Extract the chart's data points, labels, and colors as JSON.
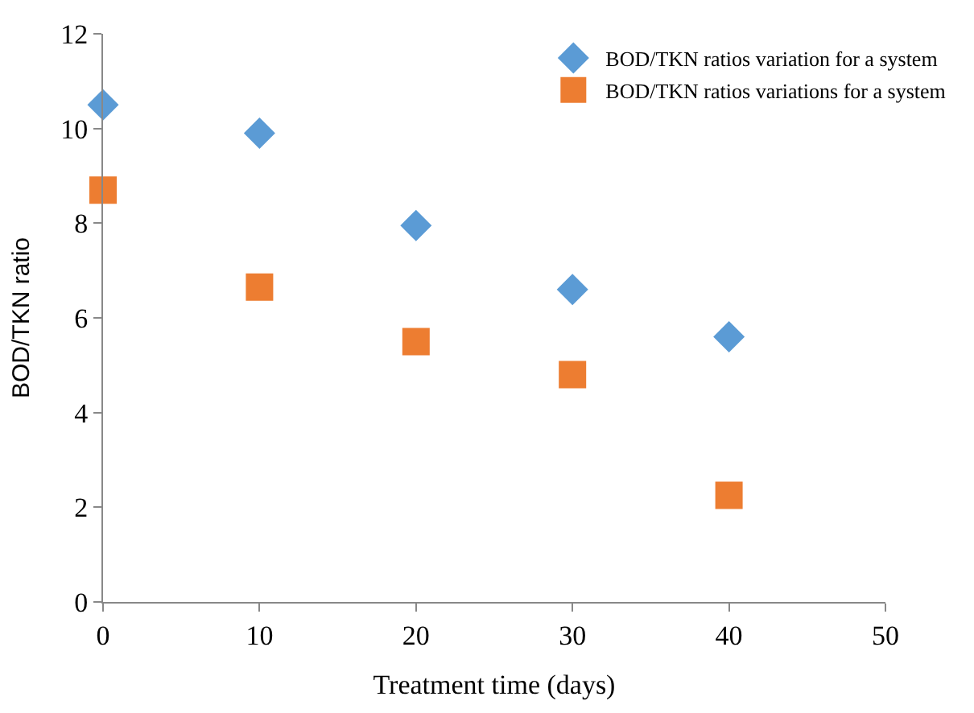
{
  "chart_data": {
    "type": "scatter",
    "xlabel": "Treatment time (days)",
    "ylabel": "BOD/TKN ratio",
    "x": [
      0,
      10,
      20,
      30,
      40
    ],
    "series": [
      {
        "name": "BOD/TKN ratios variation for a system",
        "color": "#5b9bd5",
        "marker": "diamond",
        "values": [
          10.5,
          9.9,
          7.95,
          6.6,
          5.6
        ]
      },
      {
        "name": "BOD/TKN ratios variations for a system",
        "color": "#ed7d31",
        "marker": "square",
        "values": [
          8.7,
          6.65,
          5.5,
          4.8,
          2.25
        ]
      }
    ],
    "xlim": [
      0,
      50
    ],
    "xticks": [
      0,
      10,
      20,
      30,
      40,
      50
    ],
    "ylim": [
      0,
      12
    ],
    "yticks": [
      0,
      2,
      4,
      6,
      8,
      10,
      12
    ],
    "legend": "top right"
  }
}
